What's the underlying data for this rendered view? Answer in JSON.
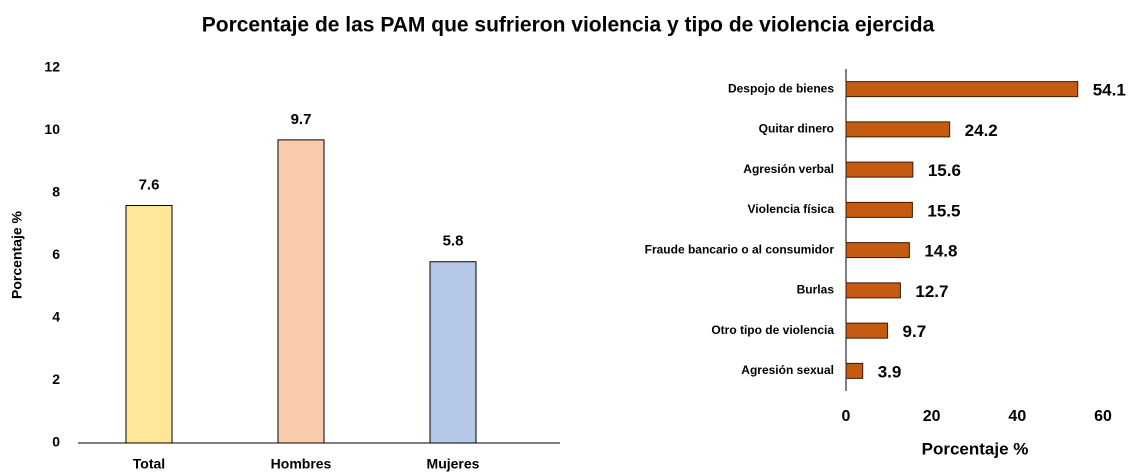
{
  "title": "Porcentaje de las PAM que sufrieron violencia y tipo de violencia ejercida",
  "chart_data": [
    {
      "type": "bar",
      "categories": [
        "Total",
        "Hombres",
        "Mujeres"
      ],
      "values": [
        7.6,
        9.7,
        5.8
      ],
      "colors": [
        "#FFE699",
        "#F8CBAD",
        "#B4C7E7"
      ],
      "ylabel": "Porcentaje %",
      "ylim": [
        0,
        12
      ],
      "yticks": [
        0,
        2,
        4,
        6,
        8,
        10,
        12
      ]
    },
    {
      "type": "barh",
      "categories": [
        "Despojo de bienes",
        "Quitar dinero",
        "Agresión verbal",
        "Violencia física",
        "Fraude bancario o al consumidor",
        "Burlas",
        "Otro tipo de violencia",
        "Agresión sexual"
      ],
      "values": [
        54.1,
        24.2,
        15.6,
        15.5,
        14.8,
        12.7,
        9.7,
        3.9
      ],
      "color": "#C55A11",
      "xlabel": "Porcentaje %",
      "xlim": [
        0,
        60
      ],
      "xticks": [
        0,
        20,
        40,
        60
      ]
    }
  ]
}
